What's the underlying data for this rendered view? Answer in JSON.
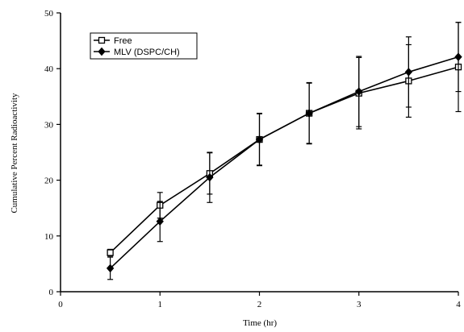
{
  "chart_data": {
    "type": "line",
    "title": "",
    "xlabel": "Time (hr)",
    "ylabel": "Cumulative Percent Radioactivity",
    "xlim": [
      0,
      4
    ],
    "ylim": [
      0,
      50
    ],
    "x_ticks": [
      "0",
      "1",
      "2",
      "3",
      "4"
    ],
    "y_ticks": [
      "0",
      "10",
      "20",
      "30",
      "40",
      "50"
    ],
    "grid": false,
    "legend_position": "top-left",
    "series": [
      {
        "name": "Free",
        "marker": "open-square",
        "color": "#000000",
        "x": [
          0.5,
          1,
          1.5,
          2,
          2.5,
          3,
          3.5,
          4
        ],
        "y": [
          7.0,
          15.5,
          21.2,
          27.3,
          32.0,
          35.6,
          37.8,
          40.3
        ],
        "error": [
          0.6,
          2.3,
          3.7,
          4.6,
          5.5,
          6.4,
          6.5,
          8.0
        ]
      },
      {
        "name": "MLV (DSPC/CH)",
        "marker": "filled-diamond",
        "color": "#000000",
        "x": [
          0.5,
          1,
          1.5,
          2,
          2.5,
          3,
          3.5,
          4
        ],
        "y": [
          4.2,
          12.6,
          20.5,
          27.3,
          32.0,
          35.9,
          39.4,
          42.1
        ],
        "error": [
          2.0,
          3.6,
          4.5,
          4.7,
          5.4,
          6.3,
          6.3,
          6.2
        ]
      }
    ]
  }
}
